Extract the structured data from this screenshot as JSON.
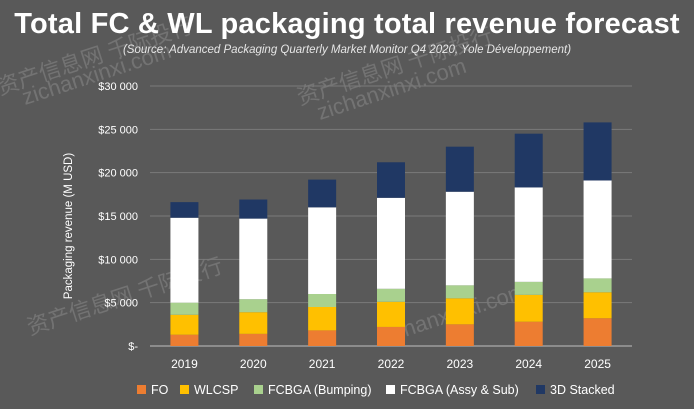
{
  "chart_data": {
    "type": "bar",
    "stacked": true,
    "title": "Total FC & WL packaging total revenue forecast",
    "subtitle": "(Source: Advanced Packaging Quarterly Market Monitor Q4 2020, Yole Développement)",
    "xlabel": "",
    "ylabel": "Packaging revenue (M USD)",
    "ylim": [
      0,
      30000
    ],
    "yticks": [
      0,
      5000,
      10000,
      15000,
      20000,
      25000,
      30000
    ],
    "ytick_labels": [
      "$-",
      "$5 000",
      "$10 000",
      "$15 000",
      "$20 000",
      "$25 000",
      "$30 000"
    ],
    "grid": true,
    "legend_position": "bottom",
    "categories": [
      "2019",
      "2020",
      "2021",
      "2022",
      "2023",
      "2024",
      "2025"
    ],
    "series": [
      {
        "name": "FO",
        "color": "#ed7d31",
        "values": [
          1300,
          1400,
          1800,
          2200,
          2500,
          2800,
          3200
        ]
      },
      {
        "name": "WLCSP",
        "color": "#ffc000",
        "values": [
          2300,
          2500,
          2700,
          2900,
          3000,
          3100,
          3000
        ]
      },
      {
        "name": "FCBGA (Bumping)",
        "color": "#a9d18e",
        "values": [
          1400,
          1500,
          1500,
          1500,
          1500,
          1500,
          1600
        ]
      },
      {
        "name": "FCBGA (Assy & Sub)",
        "color": "#ffffff",
        "values": [
          9800,
          9300,
          10000,
          10500,
          10800,
          10900,
          11300
        ]
      },
      {
        "name": "3D Stacked",
        "color": "#203864",
        "values": [
          1800,
          2200,
          3200,
          4100,
          5200,
          6200,
          6700
        ]
      }
    ]
  },
  "watermarks": [
    "资产信息网 千际投行",
    "zichanxinxi.com",
    "资产信息网 千际投行",
    "zichanxinxi.com",
    "资产信息网 千际投行",
    "zichanxinxi.com"
  ]
}
